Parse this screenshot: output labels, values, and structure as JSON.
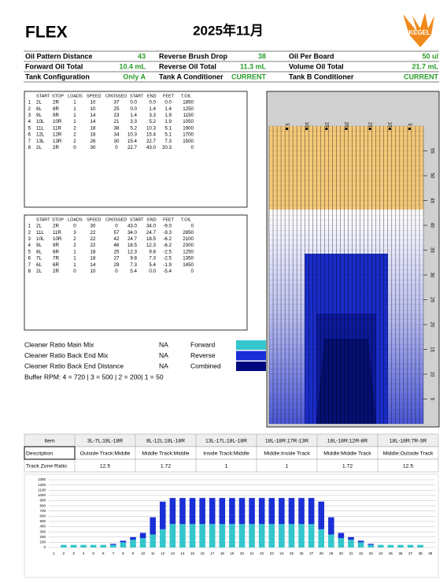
{
  "header": {
    "logo": "FLEX",
    "title": "2025年11月",
    "brand": "KEGEL"
  },
  "summary": [
    [
      {
        "label": "Oil Pattern Distance",
        "value": "43"
      },
      {
        "label": "Reverse Brush Drop",
        "value": "38"
      },
      {
        "label": "Oil Per Board",
        "value": "50 ul"
      }
    ],
    [
      {
        "label": "Forward Oil Total",
        "value": "10.4 mL"
      },
      {
        "label": "Reverse Oil Total",
        "value": "11.3 mL"
      },
      {
        "label": "Volume Oil Total",
        "value": "21.7 mL"
      }
    ],
    [
      {
        "label": "Tank Configuration",
        "value": "Only A"
      },
      {
        "label": "Tank A Conditioner",
        "value": "CURRENT"
      },
      {
        "label": "Tank B Conditioner",
        "value": "CURRENT"
      }
    ]
  ],
  "forward_table": {
    "columns": [
      "",
      "START",
      "STOP",
      "LOADS",
      "SPEED",
      "CROSSED",
      "START",
      "END",
      "FEET",
      "T.OIL"
    ],
    "rows": [
      [
        "1",
        "2L",
        "2R",
        "1",
        "10",
        "37",
        "0.0",
        "0.0",
        "0.0",
        "1850"
      ],
      [
        "2",
        "8L",
        "8R",
        "1",
        "10",
        "25",
        "0.0",
        "1.4",
        "1.4",
        "1250"
      ],
      [
        "3",
        "9L",
        "9R",
        "1",
        "14",
        "23",
        "1.4",
        "3.3",
        "1.9",
        "1150"
      ],
      [
        "4",
        "10L",
        "10R",
        "1",
        "14",
        "21",
        "3.3",
        "5.2",
        "1.9",
        "1050"
      ],
      [
        "5",
        "11L",
        "11R",
        "2",
        "18",
        "38",
        "5.2",
        "10.3",
        "5.1",
        "1900"
      ],
      [
        "6",
        "12L",
        "12R",
        "2",
        "18",
        "34",
        "10.3",
        "15.4",
        "5.1",
        "1700"
      ],
      [
        "7",
        "13L",
        "13R",
        "2",
        "26",
        "30",
        "15.4",
        "22.7",
        "7.3",
        "1500"
      ],
      [
        "8",
        "2L",
        "2R",
        "0",
        "30",
        "0",
        "22.7",
        "43.0",
        "20.3",
        "0"
      ]
    ]
  },
  "reverse_table": {
    "columns": [
      "",
      "START",
      "STOP",
      "LOADS",
      "SPEED",
      "CROSSED",
      "START",
      "END",
      "FEET",
      "T.OIL"
    ],
    "rows": [
      [
        "1",
        "2L",
        "2R",
        "0",
        "30",
        "0",
        "43.0",
        "34.0",
        "-9.0",
        "0"
      ],
      [
        "2",
        "11L",
        "11R",
        "3",
        "22",
        "57",
        "34.0",
        "24.7",
        "-9.3",
        "2850"
      ],
      [
        "3",
        "10L",
        "10R",
        "2",
        "22",
        "42",
        "24.7",
        "18.5",
        "-6.2",
        "2100"
      ],
      [
        "4",
        "9L",
        "9R",
        "2",
        "22",
        "46",
        "18.5",
        "12.3",
        "-6.2",
        "2300"
      ],
      [
        "5",
        "8L",
        "8R",
        "1",
        "18",
        "25",
        "12.3",
        "9.8",
        "-2.5",
        "1250"
      ],
      [
        "6",
        "7L",
        "7R",
        "1",
        "18",
        "27",
        "9.8",
        "7.3",
        "-2.5",
        "1350"
      ],
      [
        "7",
        "6L",
        "6R",
        "1",
        "14",
        "29",
        "7.3",
        "5.4",
        "-1.9",
        "1450"
      ],
      [
        "8",
        "2L",
        "2R",
        "0",
        "10",
        "0",
        "5.4",
        "0.0",
        "-5.4",
        "0"
      ]
    ]
  },
  "cleaner": [
    {
      "label": "Cleaner Ratio Main Mix",
      "value": "NA"
    },
    {
      "label": "Cleaner Ratio Back End Mix",
      "value": "NA"
    },
    {
      "label": "Cleaner Ratio Back End Distance",
      "value": "NA"
    }
  ],
  "buffer": "Buffer RPM: 4 = 720 | 3 = 500 | 2 = 200| 1 = 50",
  "combined_label": "Combined",
  "combined_color": "#000a80",
  "lane": {
    "ylim": [
      0,
      60
    ],
    "feet_ticks": [
      5,
      10,
      15,
      20,
      25,
      30,
      35,
      40,
      45,
      50,
      55
    ],
    "board_labels": [
      "5",
      "10",
      "15",
      "20",
      "15",
      "10",
      "5"
    ]
  },
  "track_table": {
    "rows": [
      [
        "Item",
        "3L-7L:18L-18R",
        "8L-12L:18L-18R",
        "13L-17L:18L-18R",
        "18L-18R:17R-13R",
        "18L-18R:12R-8R",
        "18L-18R:7R-3R"
      ],
      [
        "Description",
        "Outside Track:Middle",
        "Middle Track:Middle",
        "Inside Track:Middle",
        "Middle:Inside Track",
        "Middle:Middle Track",
        "Middle:Outside Track"
      ],
      [
        "Track Zone Ratio",
        "12.5",
        "1.72",
        "1",
        "1",
        "1.72",
        "12.5"
      ]
    ]
  },
  "chart_data": {
    "type": "stacked_bar",
    "categories": [
      1,
      2,
      3,
      4,
      5,
      6,
      7,
      8,
      9,
      10,
      11,
      12,
      13,
      14,
      15,
      16,
      17,
      18,
      19,
      20,
      21,
      22,
      23,
      24,
      25,
      26,
      27,
      28,
      29,
      30,
      31,
      32,
      33,
      34,
      35,
      36,
      37,
      38,
      39
    ],
    "series": [
      {
        "name": "Forward",
        "color": "#33c6cc",
        "values": [
          0,
          50,
          50,
          50,
          50,
          50,
          50,
          100,
          150,
          180,
          250,
          350,
          450,
          450,
          450,
          450,
          450,
          450,
          450,
          450,
          450,
          450,
          450,
          450,
          450,
          450,
          450,
          350,
          250,
          180,
          150,
          100,
          50,
          50,
          50,
          50,
          50,
          50,
          0
        ]
      },
      {
        "name": "Reverse",
        "color": "#1a2fd6",
        "values": [
          0,
          0,
          0,
          0,
          0,
          0,
          20,
          30,
          50,
          100,
          330,
          530,
          500,
          500,
          500,
          500,
          500,
          500,
          500,
          500,
          500,
          500,
          500,
          500,
          500,
          500,
          500,
          530,
          330,
          100,
          50,
          30,
          20,
          0,
          0,
          0,
          0,
          0,
          0
        ]
      }
    ],
    "ylim": [
      0,
      1300
    ],
    "yticks": [
      0,
      100,
      200,
      300,
      400,
      500,
      600,
      700,
      800,
      900,
      1000,
      1100,
      1200,
      1300
    ],
    "grid": true
  }
}
